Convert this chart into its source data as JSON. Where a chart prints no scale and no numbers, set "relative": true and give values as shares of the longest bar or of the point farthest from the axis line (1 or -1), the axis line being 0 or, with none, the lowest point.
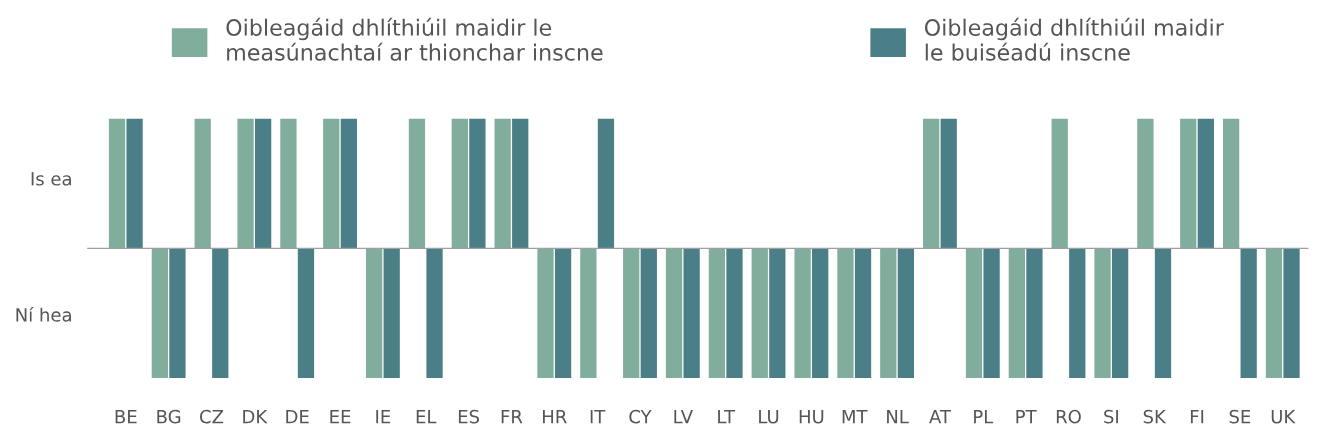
{
  "chart_data": {
    "type": "bar",
    "categories": [
      "BE",
      "BG",
      "CZ",
      "DK",
      "DE",
      "EE",
      "IE",
      "EL",
      "ES",
      "FR",
      "HR",
      "IT",
      "CY",
      "LV",
      "LT",
      "LU",
      "HU",
      "MT",
      "NL",
      "AT",
      "PL",
      "PT",
      "RO",
      "SI",
      "SK",
      "FI",
      "SE",
      "UK"
    ],
    "series": [
      {
        "name": "Oibleagáid dhlíthiúil maidir le\nmeasúnachtaí ar thionchar inscne",
        "color": "#80ad9c",
        "values": [
          1,
          -1,
          1,
          1,
          1,
          1,
          -1,
          1,
          1,
          1,
          -1,
          -1,
          -1,
          -1,
          -1,
          -1,
          -1,
          -1,
          -1,
          1,
          -1,
          -1,
          1,
          -1,
          1,
          1,
          1,
          -1
        ]
      },
      {
        "name": "Oibleagáid dhlíthiúil maidir\nle buiséadú inscne",
        "color": "#4a7f87",
        "values": [
          1,
          -1,
          -1,
          1,
          -1,
          1,
          -1,
          -1,
          1,
          1,
          -1,
          1,
          -1,
          -1,
          -1,
          -1,
          -1,
          -1,
          -1,
          1,
          -1,
          -1,
          -1,
          -1,
          -1,
          1,
          -1,
          -1
        ]
      }
    ],
    "relative": true,
    "annotations": [
      "Is ea",
      "Ní hea"
    ],
    "ref_lines": [
      {
        "axis": "y",
        "value": 0,
        "color": "#a0a0a0"
      }
    ],
    "grid": false,
    "legend": "top"
  }
}
